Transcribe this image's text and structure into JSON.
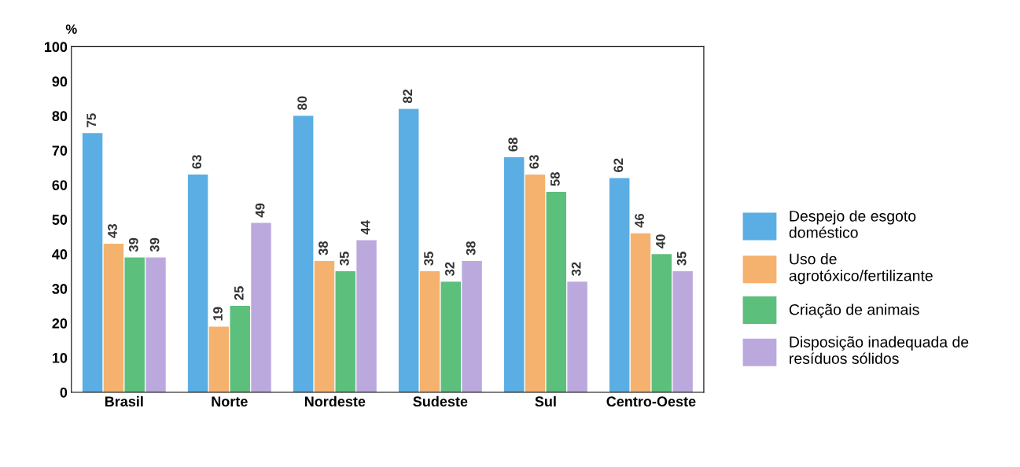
{
  "chart_data": {
    "type": "bar",
    "ylabel": "%",
    "categories": [
      "Brasil",
      "Norte",
      "Nordeste",
      "Sudeste",
      "Sul",
      "Centro-Oeste"
    ],
    "series": [
      {
        "name": "Despejo de esgoto doméstico",
        "color": "#5aaee3",
        "values": [
          75,
          63,
          80,
          82,
          68,
          62
        ]
      },
      {
        "name": "Uso de agrotóxico/fertilizante",
        "color": "#f5b26e",
        "values": [
          43,
          19,
          38,
          35,
          63,
          46
        ]
      },
      {
        "name": "Criação de animais",
        "color": "#5cbf7c",
        "values": [
          39,
          25,
          35,
          32,
          58,
          40
        ]
      },
      {
        "name": "Disposição inadequada de resíduos sólidos",
        "color": "#bba9de",
        "values": [
          39,
          49,
          44,
          38,
          32,
          35
        ]
      }
    ],
    "ylim": [
      0,
      100
    ],
    "yticks": [
      0,
      10,
      20,
      30,
      40,
      50,
      60,
      70,
      80,
      90,
      100
    ],
    "data_labels": true,
    "grid": false,
    "legend": "right"
  }
}
